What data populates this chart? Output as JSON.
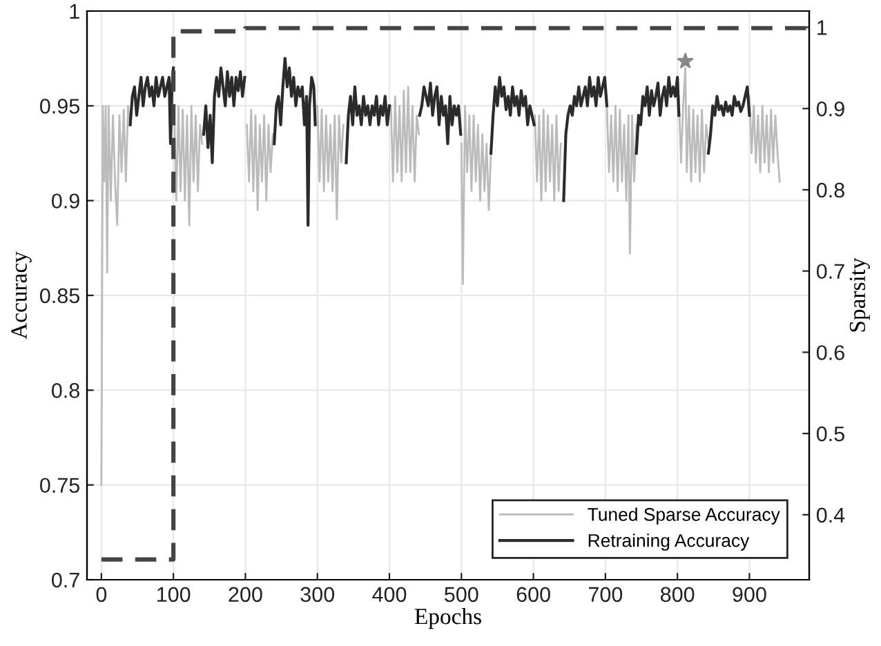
{
  "chart_data": {
    "type": "line",
    "xlabel": "Epochs",
    "ylabel": "Accuracy",
    "y2label": "Sparsity",
    "xlim": [
      -20,
      983
    ],
    "xticks": [
      0,
      100,
      200,
      300,
      400,
      500,
      600,
      700,
      800,
      900
    ],
    "ylim": [
      0.7,
      1
    ],
    "yticks": [
      0.7,
      0.75,
      0.8,
      0.85,
      0.9,
      0.95,
      1
    ],
    "y2lim": [
      0.32,
      1.02
    ],
    "y2ticks": [
      0.4,
      0.5,
      0.6,
      0.7,
      0.8,
      0.9,
      1
    ],
    "grid": true,
    "legend": "bottom right",
    "series": [
      {
        "name": "Tuned Sparse Accuracy",
        "color": "#bbbbbb",
        "line_style": "solid",
        "x": [
          0,
          2,
          4,
          6,
          8,
          10,
          13,
          16,
          19,
          22,
          25,
          28,
          31,
          34,
          37,
          40,
          null,
          101,
          104,
          107,
          110,
          113,
          116,
          119,
          122,
          125,
          128,
          131,
          134,
          137,
          140,
          null,
          202,
          205,
          208,
          211,
          214,
          217,
          220,
          223,
          226,
          229,
          232,
          235,
          238,
          null,
          300,
          303,
          306,
          309,
          312,
          315,
          318,
          321,
          324,
          327,
          330,
          333,
          336,
          null,
          402,
          405,
          408,
          411,
          414,
          417,
          420,
          423,
          426,
          429,
          432,
          435,
          438,
          441,
          null,
          500,
          502,
          505,
          508,
          511,
          514,
          517,
          520,
          523,
          526,
          529,
          532,
          535,
          538,
          541,
          null,
          602,
          605,
          608,
          611,
          614,
          617,
          620,
          623,
          626,
          629,
          632,
          635,
          638,
          null,
          702,
          705,
          708,
          711,
          714,
          717,
          720,
          723,
          726,
          729,
          732,
          734,
          737,
          740,
          743,
          null,
          802,
          805,
          808,
          811,
          813,
          816,
          819,
          822,
          825,
          828,
          831,
          834,
          837,
          840,
          843,
          null,
          900,
          903,
          906,
          909,
          912,
          915,
          918,
          921,
          924,
          927,
          930,
          933,
          936,
          939,
          942
        ],
        "values": [
          0.75,
          0.95,
          0.91,
          0.95,
          0.862,
          0.95,
          0.9,
          0.945,
          0.91,
          0.887,
          0.945,
          0.915,
          0.948,
          0.91,
          0.95,
          0.94,
          null,
          0.95,
          0.9,
          0.95,
          0.905,
          0.948,
          0.9,
          0.945,
          0.887,
          0.95,
          0.91,
          0.945,
          0.905,
          0.94,
          0.93,
          null,
          0.94,
          0.91,
          0.948,
          0.905,
          0.945,
          0.895,
          0.94,
          0.91,
          0.945,
          0.9,
          0.94,
          0.915,
          0.935,
          null,
          0.95,
          0.91,
          0.948,
          0.905,
          0.945,
          0.91,
          0.94,
          0.905,
          0.945,
          0.89,
          0.945,
          0.92,
          0.94,
          null,
          0.95,
          0.91,
          0.955,
          0.915,
          0.95,
          0.91,
          0.958,
          0.915,
          0.96,
          0.915,
          0.95,
          0.91,
          0.945,
          0.935,
          null,
          0.93,
          0.856,
          0.95,
          0.915,
          0.945,
          0.905,
          0.945,
          0.91,
          0.94,
          0.9,
          0.935,
          0.905,
          0.93,
          0.895,
          0.925,
          null,
          0.945,
          0.91,
          0.945,
          0.9,
          0.948,
          0.905,
          0.945,
          0.91,
          0.94,
          0.9,
          0.945,
          0.905,
          0.93,
          null,
          0.95,
          0.915,
          0.945,
          0.91,
          0.95,
          0.905,
          0.948,
          0.91,
          0.94,
          0.9,
          0.945,
          0.872,
          0.945,
          0.91,
          0.94,
          null,
          0.955,
          0.92,
          0.95,
          0.97,
          0.915,
          0.95,
          0.91,
          0.948,
          0.915,
          0.945,
          0.91,
          0.948,
          0.915,
          0.94,
          0.93,
          null,
          0.955,
          0.925,
          0.95,
          0.92,
          0.945,
          0.915,
          0.95,
          0.92,
          0.945,
          0.915,
          0.948,
          0.92,
          0.945,
          0.925,
          0.91
        ]
      },
      {
        "name": "Retraining Accuracy",
        "color": "#2b2b2b",
        "line_style": "solid",
        "x": [
          40,
          43,
          46,
          49,
          52,
          55,
          58,
          61,
          64,
          67,
          70,
          73,
          76,
          79,
          82,
          85,
          88,
          91,
          94,
          96,
          98,
          100,
          null,
          142,
          145,
          148,
          151,
          154,
          157,
          160,
          163,
          166,
          169,
          172,
          175,
          178,
          181,
          184,
          187,
          190,
          193,
          196,
          199,
          null,
          240,
          243,
          246,
          249,
          252,
          255,
          258,
          261,
          264,
          267,
          270,
          273,
          276,
          279,
          282,
          285,
          287,
          289,
          292,
          295,
          297,
          null,
          340,
          343,
          346,
          349,
          352,
          355,
          358,
          361,
          364,
          367,
          370,
          373,
          376,
          379,
          382,
          385,
          388,
          391,
          394,
          397,
          400,
          null,
          442,
          445,
          448,
          451,
          454,
          457,
          460,
          463,
          466,
          469,
          472,
          475,
          478,
          481,
          484,
          487,
          490,
          493,
          496,
          499,
          null,
          541,
          544,
          547,
          550,
          553,
          556,
          559,
          562,
          565,
          568,
          571,
          574,
          577,
          580,
          583,
          586,
          589,
          592,
          595,
          598,
          601,
          null,
          642,
          645,
          648,
          651,
          654,
          657,
          660,
          663,
          666,
          669,
          672,
          675,
          678,
          681,
          684,
          687,
          690,
          693,
          696,
          699,
          702,
          null,
          743,
          746,
          749,
          752,
          755,
          758,
          761,
          764,
          767,
          770,
          773,
          776,
          779,
          782,
          785,
          788,
          791,
          794,
          797,
          800,
          802,
          null,
          843,
          846,
          849,
          852,
          855,
          858,
          861,
          864,
          867,
          870,
          873,
          876,
          879,
          882,
          885,
          888,
          891,
          894,
          897,
          900
        ],
        "values": [
          0.94,
          0.955,
          0.96,
          0.945,
          0.955,
          0.965,
          0.95,
          0.96,
          0.965,
          0.955,
          0.96,
          0.95,
          0.965,
          0.955,
          0.96,
          0.965,
          0.955,
          0.96,
          0.965,
          0.93,
          0.96,
          0.97,
          null,
          0.935,
          0.95,
          0.928,
          0.945,
          0.92,
          0.955,
          0.965,
          0.955,
          0.97,
          0.96,
          0.95,
          0.968,
          0.955,
          0.965,
          0.95,
          0.965,
          0.958,
          0.968,
          0.955,
          0.965,
          null,
          0.93,
          0.95,
          0.955,
          0.94,
          0.96,
          0.975,
          0.96,
          0.97,
          0.955,
          0.965,
          0.95,
          0.96,
          0.955,
          0.96,
          0.94,
          0.955,
          0.887,
          0.95,
          0.965,
          0.96,
          0.94,
          null,
          0.92,
          0.945,
          0.955,
          0.94,
          0.96,
          0.945,
          0.95,
          0.94,
          0.955,
          0.945,
          0.95,
          0.94,
          0.95,
          0.945,
          0.955,
          0.94,
          0.95,
          0.945,
          0.955,
          0.94,
          0.95,
          null,
          0.945,
          0.95,
          0.96,
          0.955,
          0.95,
          0.962,
          0.945,
          0.955,
          0.96,
          0.94,
          0.955,
          0.945,
          0.95,
          0.93,
          0.955,
          0.94,
          0.95,
          0.945,
          0.95,
          0.935,
          null,
          0.925,
          0.945,
          0.96,
          0.95,
          0.965,
          0.955,
          0.96,
          0.948,
          0.955,
          0.945,
          0.96,
          0.95,
          0.955,
          0.945,
          0.958,
          0.95,
          0.955,
          0.94,
          0.95,
          0.945,
          0.94,
          null,
          0.9,
          0.935,
          0.945,
          0.95,
          0.945,
          0.955,
          0.95,
          0.96,
          0.95,
          0.955,
          0.96,
          0.95,
          0.965,
          0.955,
          0.96,
          0.95,
          0.965,
          0.955,
          0.96,
          0.965,
          0.95,
          null,
          0.925,
          0.945,
          0.94,
          0.955,
          0.95,
          0.96,
          0.945,
          0.958,
          0.95,
          0.955,
          0.962,
          0.945,
          0.955,
          0.96,
          0.95,
          0.965,
          0.955,
          0.96,
          0.955,
          0.965,
          0.945,
          null,
          0.925,
          0.935,
          0.95,
          0.945,
          0.955,
          0.948,
          0.95,
          0.945,
          0.952,
          0.947,
          0.95,
          0.945,
          0.955,
          0.95,
          0.952,
          0.947,
          0.95,
          0.955,
          0.96,
          0.945
        ]
      },
      {
        "color": "#444444",
        "axis": "y2",
        "line_style": "dashed",
        "x": [
          0,
          100,
          100,
          200,
          200,
          983
        ],
        "values": [
          0.345,
          0.345,
          0.995,
          0.995,
          0.999,
          0.999
        ]
      },
      {
        "type": "scatter",
        "color": "#888888",
        "marker": "star",
        "x": [
          811
        ],
        "values": [
          0.9735
        ]
      }
    ]
  }
}
